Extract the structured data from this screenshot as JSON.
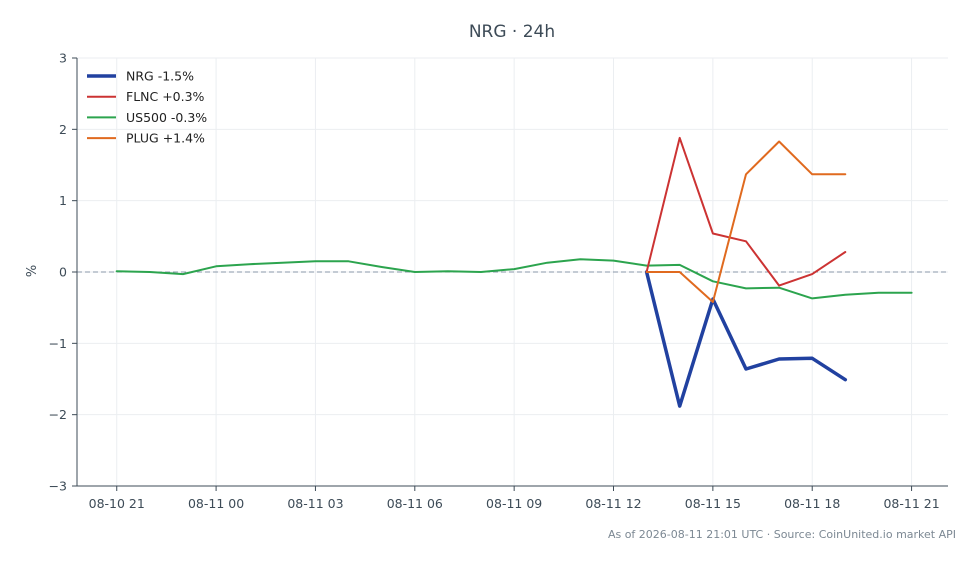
{
  "chart_data": {
    "type": "line",
    "title": "NRG · 24h",
    "xlabel": "",
    "ylabel": "%",
    "ylim": [
      -3,
      3
    ],
    "yticks": [
      3,
      2,
      1,
      0,
      -1,
      -2,
      -3
    ],
    "ytick_labels": [
      "3",
      "2",
      "1",
      "0",
      "−1",
      "−2",
      "−3"
    ],
    "xticks": [
      0,
      3,
      6,
      9,
      12,
      15,
      18,
      21,
      24
    ],
    "xtick_labels": [
      "08-10 21",
      "08-11 00",
      "08-11 03",
      "08-11 06",
      "08-11 09",
      "08-11 12",
      "08-11 15",
      "08-11 18",
      "08-11 21"
    ],
    "xlim": [
      -1.2,
      25.1
    ],
    "x_unit": "hours since 08-10 21:00 UTC",
    "zero_line": true,
    "grid": true,
    "legend_position": "top-left",
    "series": [
      {
        "name": "NRG -1.5%",
        "color": "#2141a0",
        "width": 3.5,
        "x": [
          16,
          17,
          18,
          19,
          20,
          21,
          22
        ],
        "y": [
          0.0,
          -1.88,
          -0.38,
          -1.36,
          -1.22,
          -1.21,
          -1.51
        ]
      },
      {
        "name": "FLNC +0.3%",
        "color": "#cc3333",
        "width": 2,
        "x": [
          16,
          17,
          18,
          19,
          20,
          21,
          22
        ],
        "y": [
          0.0,
          1.88,
          0.54,
          0.43,
          -0.19,
          -0.03,
          0.28
        ]
      },
      {
        "name": "US500 -0.3%",
        "color": "#2ca44e",
        "width": 2,
        "x": [
          0,
          1,
          2,
          3,
          4,
          5,
          6,
          7,
          8,
          9,
          10,
          11,
          12,
          13,
          14,
          15,
          16,
          17,
          18,
          19,
          20,
          21,
          22,
          23,
          24
        ],
        "y": [
          0.01,
          0.0,
          -0.03,
          0.08,
          0.11,
          0.13,
          0.15,
          0.15,
          0.07,
          0.0,
          0.01,
          0.0,
          0.04,
          0.13,
          0.18,
          0.16,
          0.09,
          0.1,
          -0.13,
          -0.23,
          -0.22,
          -0.37,
          -0.32,
          -0.29,
          -0.29
        ]
      },
      {
        "name": "PLUG +1.4%",
        "color": "#e06a1f",
        "width": 2,
        "x": [
          16,
          17,
          18,
          19,
          20,
          21,
          22
        ],
        "y": [
          0.0,
          0.0,
          -0.42,
          1.37,
          1.83,
          1.37,
          1.37
        ]
      }
    ],
    "footer": "As of 2026-08-11 21:01 UTC · Source: CoinUnited.io market API"
  }
}
